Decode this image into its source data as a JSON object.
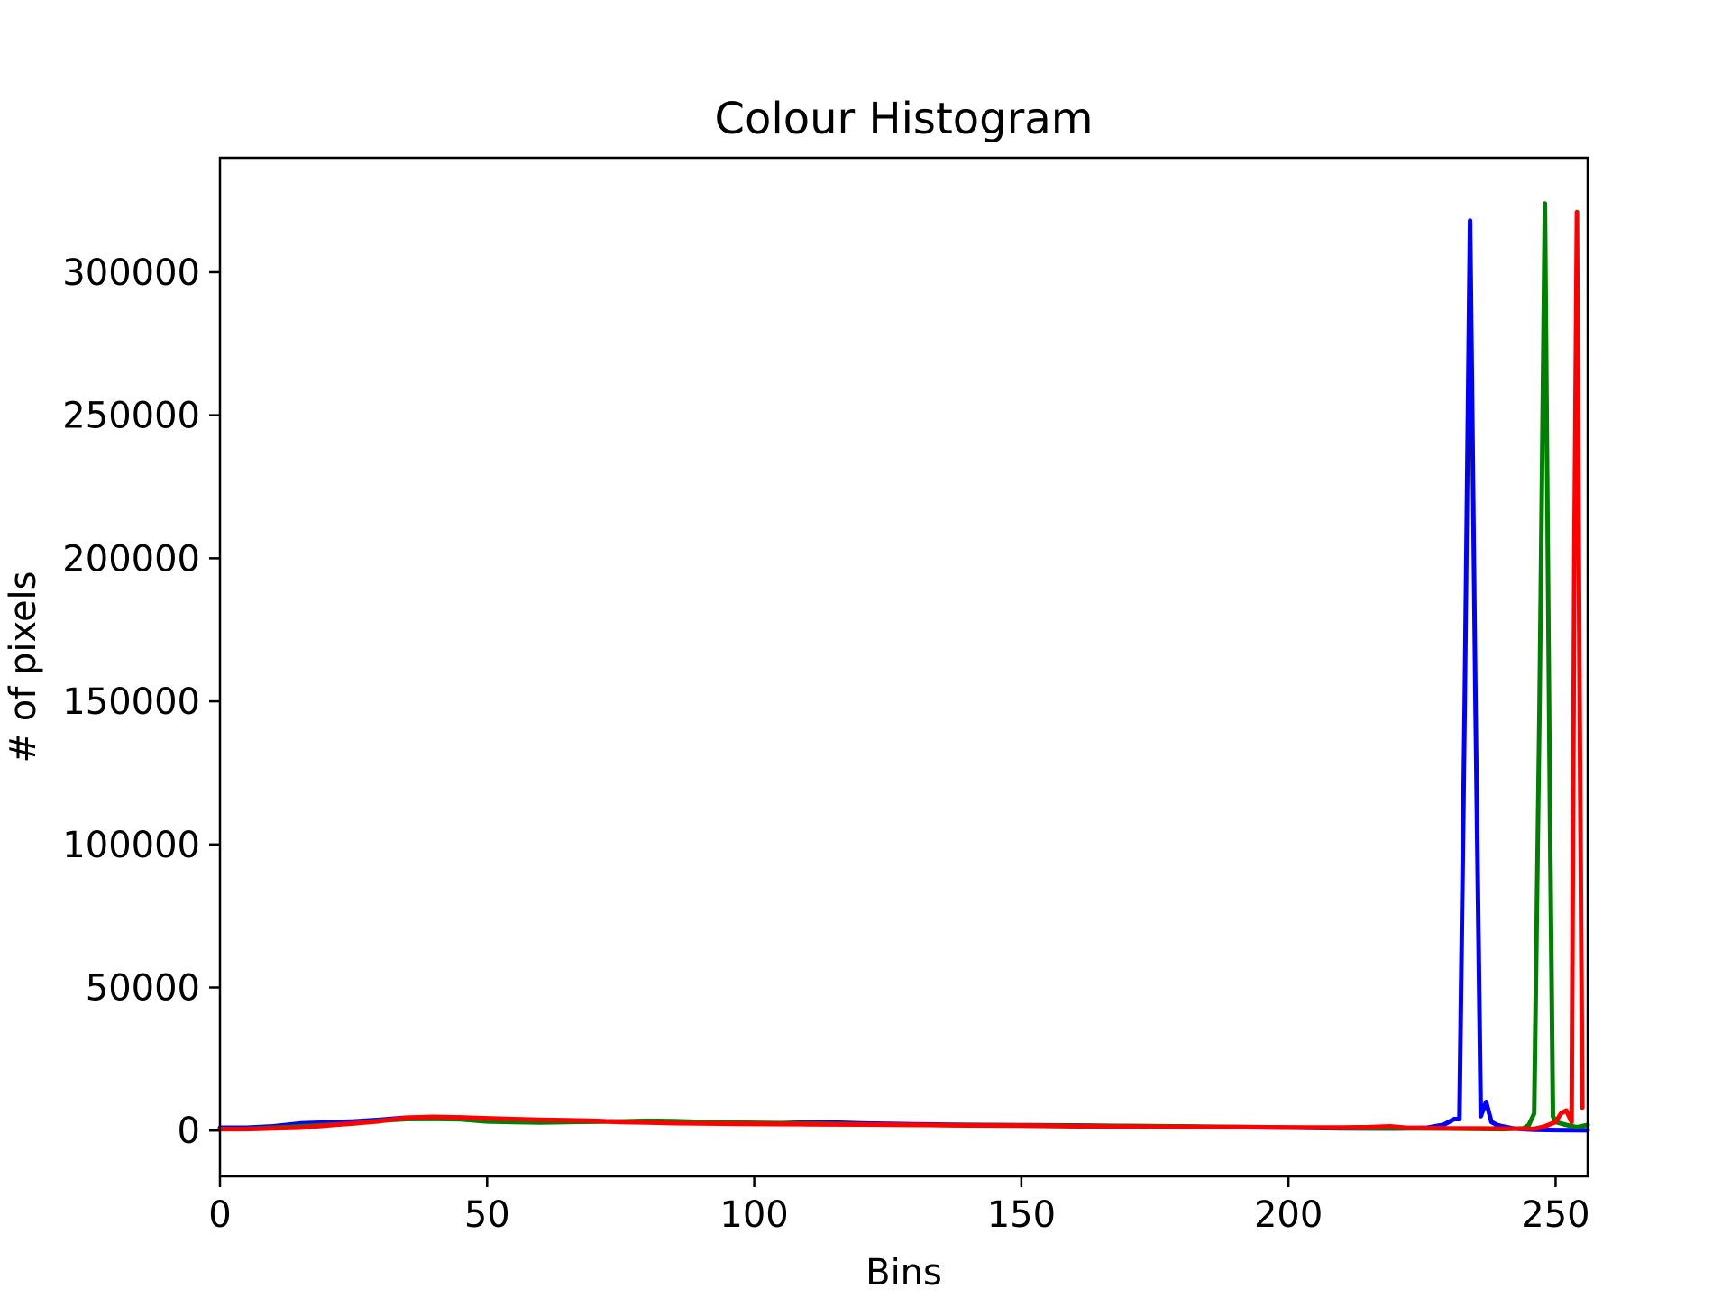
{
  "chart_data": {
    "type": "line",
    "title": "Colour Histogram",
    "xlabel": "Bins",
    "ylabel": "# of pixels",
    "xlim": [
      0,
      256
    ],
    "ylim": [
      -16000,
      340000
    ],
    "xticks": [
      0,
      50,
      100,
      150,
      200,
      250
    ],
    "xtick_labels": [
      "0",
      "50",
      "100",
      "150",
      "200",
      "250"
    ],
    "yticks": [
      0,
      50000,
      100000,
      150000,
      200000,
      250000,
      300000
    ],
    "ytick_labels": [
      "0",
      "50000",
      "100000",
      "150000",
      "200000",
      "250000",
      "300000"
    ],
    "grid": false,
    "legend": "none",
    "series": [
      {
        "color": "#0000ff",
        "points": [
          [
            0,
            1000
          ],
          [
            5,
            1000
          ],
          [
            10,
            1500
          ],
          [
            15,
            2500
          ],
          [
            20,
            2800
          ],
          [
            25,
            3200
          ],
          [
            30,
            3800
          ],
          [
            35,
            4500
          ],
          [
            40,
            4200
          ],
          [
            45,
            4300
          ],
          [
            50,
            4000
          ],
          [
            55,
            3800
          ],
          [
            60,
            3500
          ],
          [
            65,
            3500
          ],
          [
            70,
            3300
          ],
          [
            80,
            3000
          ],
          [
            90,
            2800
          ],
          [
            100,
            2600
          ],
          [
            105,
            2600
          ],
          [
            110,
            2800
          ],
          [
            113,
            2900
          ],
          [
            120,
            2500
          ],
          [
            130,
            2200
          ],
          [
            140,
            2000
          ],
          [
            150,
            1900
          ],
          [
            160,
            1800
          ],
          [
            170,
            1600
          ],
          [
            180,
            1400
          ],
          [
            190,
            1200
          ],
          [
            200,
            1000
          ],
          [
            210,
            800
          ],
          [
            220,
            700
          ],
          [
            226,
            1000
          ],
          [
            229,
            2000
          ],
          [
            231,
            4000
          ],
          [
            232,
            4000
          ],
          [
            233,
            150000
          ],
          [
            234,
            318000
          ],
          [
            235,
            150000
          ],
          [
            236,
            5000
          ],
          [
            237,
            10000
          ],
          [
            238,
            3000
          ],
          [
            239,
            2000
          ],
          [
            240,
            1500
          ],
          [
            242,
            800
          ],
          [
            244,
            500
          ],
          [
            246,
            300
          ],
          [
            250,
            200
          ],
          [
            253,
            150
          ],
          [
            256,
            100
          ]
        ]
      },
      {
        "color": "#008000",
        "points": [
          [
            0,
            500
          ],
          [
            5,
            600
          ],
          [
            10,
            1000
          ],
          [
            15,
            1500
          ],
          [
            20,
            2000
          ],
          [
            25,
            2500
          ],
          [
            30,
            3500
          ],
          [
            35,
            4000
          ],
          [
            40,
            4100
          ],
          [
            45,
            3900
          ],
          [
            50,
            3200
          ],
          [
            55,
            3000
          ],
          [
            60,
            2800
          ],
          [
            65,
            3000
          ],
          [
            70,
            3100
          ],
          [
            75,
            3200
          ],
          [
            80,
            3400
          ],
          [
            85,
            3300
          ],
          [
            90,
            3000
          ],
          [
            100,
            2700
          ],
          [
            110,
            2500
          ],
          [
            120,
            2200
          ],
          [
            130,
            2000
          ],
          [
            140,
            1900
          ],
          [
            150,
            1800
          ],
          [
            160,
            1700
          ],
          [
            170,
            1600
          ],
          [
            180,
            1500
          ],
          [
            190,
            1300
          ],
          [
            200,
            1100
          ],
          [
            210,
            900
          ],
          [
            220,
            800
          ],
          [
            230,
            700
          ],
          [
            240,
            500
          ],
          [
            244,
            800
          ],
          [
            245,
            2000
          ],
          [
            246,
            6000
          ],
          [
            247,
            150000
          ],
          [
            248,
            324000
          ],
          [
            249,
            100000
          ],
          [
            249.5,
            5000
          ],
          [
            250,
            3000
          ],
          [
            252,
            2000
          ],
          [
            254,
            1200
          ],
          [
            256,
            2000
          ]
        ]
      },
      {
        "color": "#ff0000",
        "points": [
          [
            0,
            500
          ],
          [
            5,
            500
          ],
          [
            10,
            800
          ],
          [
            15,
            1000
          ],
          [
            20,
            1800
          ],
          [
            25,
            2500
          ],
          [
            30,
            3300
          ],
          [
            35,
            4500
          ],
          [
            40,
            4800
          ],
          [
            45,
            4600
          ],
          [
            50,
            4300
          ],
          [
            55,
            4000
          ],
          [
            60,
            3800
          ],
          [
            65,
            3600
          ],
          [
            70,
            3400
          ],
          [
            75,
            3000
          ],
          [
            80,
            2800
          ],
          [
            85,
            2600
          ],
          [
            90,
            2500
          ],
          [
            95,
            2400
          ],
          [
            100,
            2300
          ],
          [
            110,
            2200
          ],
          [
            120,
            2100
          ],
          [
            130,
            2000
          ],
          [
            140,
            1800
          ],
          [
            150,
            1700
          ],
          [
            160,
            1500
          ],
          [
            170,
            1400
          ],
          [
            180,
            1300
          ],
          [
            190,
            1200
          ],
          [
            200,
            1100
          ],
          [
            210,
            1100
          ],
          [
            215,
            1200
          ],
          [
            219,
            1500
          ],
          [
            222,
            1000
          ],
          [
            230,
            800
          ],
          [
            240,
            700
          ],
          [
            246,
            600
          ],
          [
            248,
            1500
          ],
          [
            250,
            3000
          ],
          [
            251,
            6000
          ],
          [
            252,
            7000
          ],
          [
            253,
            3000
          ],
          [
            253.5,
            200000
          ],
          [
            254,
            321000
          ],
          [
            254.5,
            150000
          ],
          [
            255,
            8000
          ]
        ]
      }
    ]
  }
}
